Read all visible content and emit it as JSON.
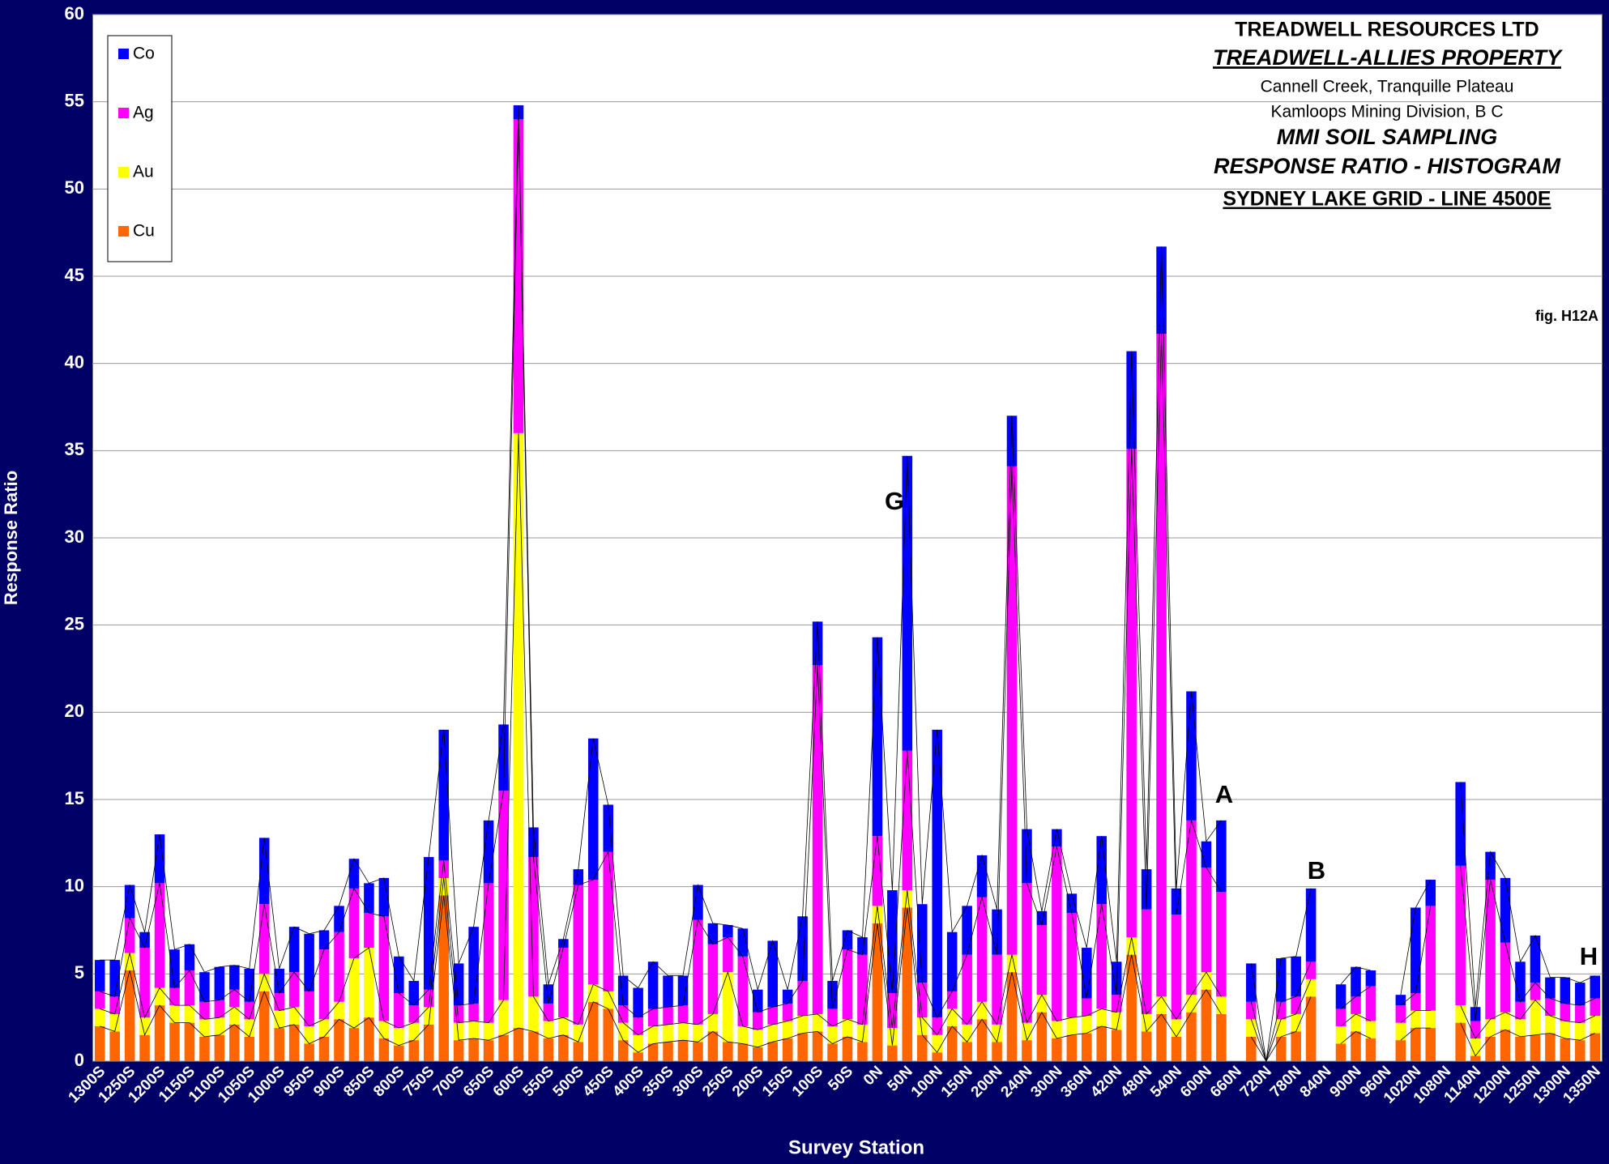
{
  "chart_data": {
    "type": "stacked_bar",
    "title_lines": [
      "TREADWELL RESOURCES LTD",
      "TREADWELL-ALLIES PROPERTY",
      "Cannell Creek, Tranquille Plateau",
      "Kamloops Mining Division, B C",
      "MMI SOIL SAMPLING",
      "RESPONSE RATIO - HISTOGRAM",
      "SYDNEY LAKE GRID - LINE  4500E"
    ],
    "note": "fig. H12A",
    "annotations": [
      "G",
      "A",
      "B",
      "H"
    ],
    "x_label": "Survey Station",
    "y_label": "Response Ratio",
    "ylim": [
      0,
      60
    ],
    "yticks": [
      0,
      5,
      10,
      15,
      20,
      25,
      30,
      35,
      40,
      45,
      50,
      55,
      60
    ],
    "grid": true,
    "legend": "upper left",
    "categories": [
      "1300S",
      null,
      "1250S",
      null,
      "1200S",
      null,
      "1150S",
      null,
      "1100S",
      null,
      "1050S",
      null,
      "1000S",
      null,
      "950S",
      null,
      "900S",
      null,
      "850S",
      null,
      "800S",
      null,
      "750S",
      null,
      "700S",
      null,
      "650S",
      null,
      "600S",
      null,
      "550S",
      null,
      "500S",
      null,
      "450S",
      null,
      "400S",
      null,
      "350S",
      null,
      "300S",
      null,
      "250S",
      null,
      "200S",
      null,
      "150S",
      null,
      "100S",
      null,
      "50S",
      null,
      "0N",
      null,
      "50N",
      null,
      "100N",
      null,
      "150N",
      null,
      "200N",
      null,
      "240N",
      null,
      "300N",
      null,
      "360N",
      null,
      "420N",
      null,
      "480N",
      null,
      "540N",
      null,
      "600N",
      null,
      "660N",
      null,
      "720N",
      null,
      "780N",
      null,
      "840N",
      null,
      "900N",
      null,
      "960N",
      null,
      "1020N",
      null,
      "1080N",
      null,
      "1140N",
      null,
      "1200N",
      null,
      "1250N",
      null,
      "1300N",
      null,
      "1350N"
    ],
    "series": [
      {
        "name": "Co",
        "color": "#0000ff",
        "values": [
          1.8,
          2.1,
          1.9,
          0.9,
          2.8,
          2.2,
          1.5,
          1.7,
          1.9,
          1.4,
          1.9,
          3.8,
          1.4,
          2.6,
          3.3,
          1.1,
          1.5,
          1.7,
          1.7,
          2.2,
          2.1,
          1.4,
          7.6,
          7.5,
          2.4,
          4.4,
          3.6,
          3.8,
          0.8,
          1.7,
          1.1,
          0.5,
          0.9,
          8.1,
          2.7,
          1.7,
          1.7,
          2.7,
          1.8,
          1.7,
          2,
          1.2,
          0.7,
          1.6,
          1.3,
          3.8,
          0.8,
          3.7,
          2.5,
          1.6,
          1.1,
          1,
          11.4,
          5.9,
          16.9,
          4.5,
          16.5,
          3.4,
          2.8,
          2.4,
          2.6,
          2.9,
          3.1,
          0.8,
          1,
          1.1,
          2.9,
          3.9,
          1.9,
          5.6,
          2.3,
          5,
          1.5,
          7.4,
          1.5,
          4.1,
          null,
          2.2,
          0,
          2.5,
          2.3,
          4.2,
          null,
          1.4,
          1.7,
          0.9,
          null,
          0.6,
          4.9,
          1.5,
          null,
          4.8,
          0.8,
          1.6,
          3.7,
          2.3,
          2.7,
          1.2,
          1.5,
          1.3,
          1.3
        ]
      },
      {
        "name": "Ag",
        "color": "#ff00ff",
        "values": [
          1,
          1,
          2,
          4,
          6,
          1,
          2,
          1,
          1,
          1,
          1,
          4,
          1,
          2,
          2,
          4,
          4,
          4,
          2,
          6,
          2,
          1,
          1,
          1,
          1,
          1,
          8,
          12,
          18,
          8,
          1,
          4,
          8,
          6,
          8,
          1,
          1,
          1,
          1,
          1,
          6,
          4,
          2,
          4,
          1,
          1,
          1,
          2,
          20,
          1,
          4,
          4,
          4,
          2,
          8,
          2,
          1,
          1,
          4,
          6,
          4,
          28,
          8,
          4,
          10,
          6,
          1,
          6,
          1,
          28,
          6,
          38,
          6,
          10,
          6,
          6,
          null,
          1,
          0,
          1,
          1,
          1,
          null,
          1,
          1,
          2,
          null,
          1,
          1,
          6,
          null,
          8,
          1,
          8,
          4,
          1,
          1,
          1,
          1,
          1,
          1
        ]
      },
      {
        "name": "Au",
        "color": "#ffff00",
        "values": [
          1,
          1,
          1,
          1,
          1,
          1,
          1,
          1,
          1,
          1,
          1,
          1,
          1,
          1,
          1,
          1,
          1,
          4,
          4,
          1,
          1,
          1,
          1,
          1,
          1,
          1,
          1,
          2,
          34.1,
          2,
          1,
          1,
          1,
          1,
          1,
          1,
          1,
          1,
          1,
          1,
          1,
          1,
          4,
          1,
          1,
          1,
          1,
          1,
          1,
          1,
          1,
          1,
          1,
          1,
          1,
          1,
          1,
          1,
          1,
          1,
          1,
          1,
          1,
          1,
          1,
          1,
          1,
          1,
          1,
          1,
          1,
          1,
          1,
          1,
          1,
          1,
          null,
          1,
          0,
          1,
          1,
          1,
          null,
          1,
          1,
          1,
          null,
          1,
          1,
          1,
          null,
          1,
          1,
          1,
          1,
          1,
          2,
          1,
          1,
          1,
          1
        ]
      },
      {
        "name": "Cu",
        "color": "#ff6600",
        "values": [
          2,
          1.7,
          5.2,
          1.5,
          3.2,
          2.2,
          2.2,
          1.4,
          1.5,
          2.1,
          1.4,
          4,
          1.9,
          2.1,
          1,
          1.4,
          2.4,
          1.9,
          2.5,
          1.3,
          0.9,
          1.2,
          2.1,
          9.5,
          1.2,
          1.3,
          1.2,
          1.5,
          1.9,
          1.7,
          1.3,
          1.5,
          1.1,
          3.4,
          3,
          1.2,
          0.5,
          1,
          1.1,
          1.2,
          1.1,
          1.7,
          1.1,
          1,
          0.8,
          1.1,
          1.3,
          1.6,
          1.7,
          1,
          1.4,
          1.1,
          7.9,
          0.9,
          8.8,
          1.5,
          0.5,
          2,
          1.1,
          2.4,
          1.1,
          5.1,
          1.2,
          2.8,
          1.3,
          1.5,
          1.6,
          2,
          1.8,
          6.1,
          1.7,
          2.7,
          1.4,
          2.8,
          4.1,
          2.7,
          null,
          1.4,
          0,
          1.4,
          1.7,
          3.7,
          null,
          1,
          1.7,
          1.3,
          null,
          1.2,
          1.9,
          1.9,
          null,
          2.2,
          0.3,
          1.4,
          1.8,
          1.4,
          1.5,
          1.6,
          1.3,
          1.2,
          1.6
        ]
      }
    ]
  }
}
